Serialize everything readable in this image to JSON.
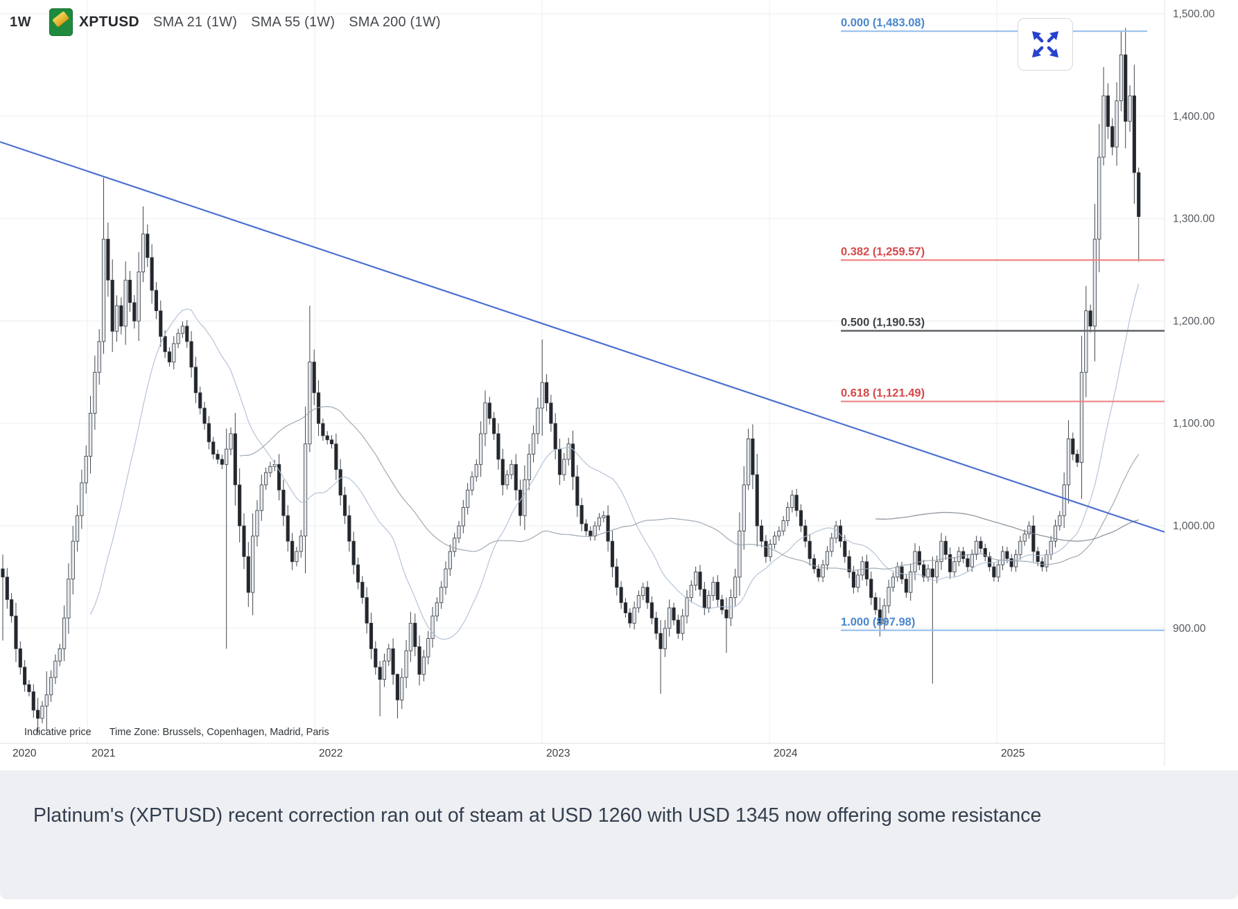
{
  "header": {
    "timeframe": "1W",
    "symbol": "XPTUSD",
    "instrument_icon": "platinum-bar-icon",
    "indicators": [
      "SMA 21 (1W)",
      "SMA 55 (1W)",
      "SMA 200 (1W)"
    ]
  },
  "toolbar": {
    "expand_icon": "expand-arrows-icon",
    "expand_color": "#2742cd"
  },
  "axes": {
    "price_labels": [
      {
        "text": "1,500.00",
        "value": 1500
      },
      {
        "text": "1,400.00",
        "value": 1400
      },
      {
        "text": "1,300.00",
        "value": 1300
      },
      {
        "text": "1,200.00",
        "value": 1200
      },
      {
        "text": "1,100.00",
        "value": 1100
      },
      {
        "text": "1,000.00",
        "value": 1000
      },
      {
        "text": "900.00",
        "value": 900
      }
    ],
    "year_labels": [
      "2020",
      "2021",
      "2022",
      "2023",
      "2024",
      "2025"
    ],
    "text_color": "#55595e",
    "grid_color": "#ebedef"
  },
  "fibonacci": {
    "levels": [
      {
        "level": "0.000",
        "text": "0.000 (1,483.08)",
        "value": 1483.08,
        "label_color": "#4a87cd",
        "line_color": "#9cc3ec"
      },
      {
        "level": "0.382",
        "text": "0.382 (1,259.57)",
        "value": 1259.57,
        "label_color": "#d64848",
        "line_color": "#ef8484"
      },
      {
        "level": "0.500",
        "text": "0.500 (1,190.53)",
        "value": 1190.53,
        "label_color": "#3f4347",
        "line_color": "#66696d"
      },
      {
        "level": "0.618",
        "text": "0.618 (1,121.49)",
        "value": 1121.49,
        "label_color": "#d64848",
        "line_color": "#ef8484"
      },
      {
        "level": "1.000",
        "text": "1.000 (897.98)",
        "value": 897.98,
        "label_color": "#4a87cd",
        "line_color": "#9cc3ec"
      }
    ]
  },
  "footnote": {
    "indicative": "Indicative price",
    "timezone": "Time Zone: Brussels, Copenhagen, Madrid, Paris"
  },
  "caption": {
    "text": "Platinum's (XPTUSD) recent correction ran out of steam at USD 1260 with USD 1345 now offering some resistance"
  },
  "chart_data": {
    "type": "candlestick",
    "symbol": "XPTUSD",
    "timeframe": "1W",
    "unit": "USD",
    "x_start": "2020-08",
    "x_end": "2025-08",
    "ylim": [
      805,
      1513
    ],
    "grid": true,
    "trendline": {
      "color": "#4d6fd1",
      "start_price": 1375,
      "end_price": 994,
      "note": "descending resistance, full width"
    },
    "candle_up_fill": "#e4e8ec",
    "candle_down_fill": "#23262b",
    "closes": [
      950,
      928,
      912,
      880,
      862,
      845,
      838,
      820,
      812,
      824,
      835,
      852,
      868,
      880,
      910,
      948,
      985,
      1010,
      1042,
      1068,
      1110,
      1150,
      1180,
      1280,
      1240,
      1190,
      1215,
      1195,
      1240,
      1218,
      1200,
      1248,
      1285,
      1262,
      1230,
      1210,
      1185,
      1170,
      1160,
      1178,
      1188,
      1195,
      1180,
      1155,
      1130,
      1115,
      1100,
      1082,
      1070,
      1065,
      1060,
      1075,
      1090,
      1040,
      1000,
      970,
      935,
      990,
      1015,
      1040,
      1052,
      1058,
      1060,
      1035,
      1010,
      985,
      965,
      975,
      990,
      1080,
      1160,
      1130,
      1100,
      1088,
      1084,
      1080,
      1055,
      1030,
      1010,
      985,
      962,
      945,
      930,
      905,
      880,
      862,
      850,
      868,
      880,
      855,
      830,
      852,
      878,
      905,
      882,
      855,
      872,
      890,
      912,
      925,
      940,
      958,
      975,
      988,
      1000,
      1018,
      1035,
      1048,
      1060,
      1090,
      1120,
      1105,
      1090,
      1065,
      1040,
      1050,
      1060,
      1035,
      1010,
      1045,
      1070,
      1090,
      1115,
      1140,
      1120,
      1100,
      1075,
      1050,
      1065,
      1080,
      1048,
      1020,
      1002,
      995,
      990,
      1000,
      1008,
      1010,
      985,
      960,
      940,
      925,
      915,
      905,
      920,
      932,
      940,
      925,
      910,
      895,
      880,
      900,
      920,
      908,
      895,
      912,
      930,
      942,
      955,
      938,
      920,
      932,
      945,
      928,
      918,
      910,
      930,
      950,
      995,
      1040,
      1085,
      1050,
      1000,
      985,
      970,
      982,
      990,
      995,
      1005,
      1018,
      1030,
      1015,
      1000,
      985,
      968,
      958,
      950,
      962,
      975,
      988,
      1000,
      985,
      970,
      955,
      940,
      952,
      965,
      948,
      930,
      918,
      905,
      922,
      940,
      950,
      960,
      948,
      935,
      955,
      975,
      962,
      950,
      958,
      950,
      965,
      985,
      972,
      955,
      965,
      975,
      968,
      960,
      972,
      985,
      978,
      970,
      960,
      950,
      962,
      975,
      968,
      960,
      972,
      985,
      992,
      1000,
      975,
      965,
      960,
      972,
      985,
      1000,
      1010,
      1040,
      1085,
      1070,
      1062,
      1150,
      1210,
      1195,
      1280,
      1360,
      1420,
      1390,
      1370,
      1415,
      1460,
      1395,
      1420,
      1345,
      1302
    ],
    "wick_overrides": {
      "0": [
        972,
        888
      ],
      "8": [
        832,
        798
      ],
      "10": [
        858,
        800
      ],
      "23": [
        1340,
        1168
      ],
      "32": [
        1312,
        1238
      ],
      "51": [
        1095,
        880
      ],
      "70": [
        1215,
        1072
      ],
      "86": [
        868,
        814
      ],
      "90": [
        856,
        812
      ],
      "123": [
        1182,
        1088
      ],
      "150": [
        908,
        836
      ],
      "165": [
        930,
        876
      ],
      "170": [
        1095,
        1035
      ],
      "200": [
        930,
        892
      ],
      "212": [
        970,
        846
      ],
      "251": [
        1448,
        1352
      ],
      "255": [
        1483,
        1405
      ],
      "259": [
        1350,
        1258
      ]
    },
    "sma_windows": [
      21,
      55,
      200
    ],
    "sma_colors": [
      "#aebdd2",
      "#97a1ab",
      "#7b848d"
    ]
  }
}
